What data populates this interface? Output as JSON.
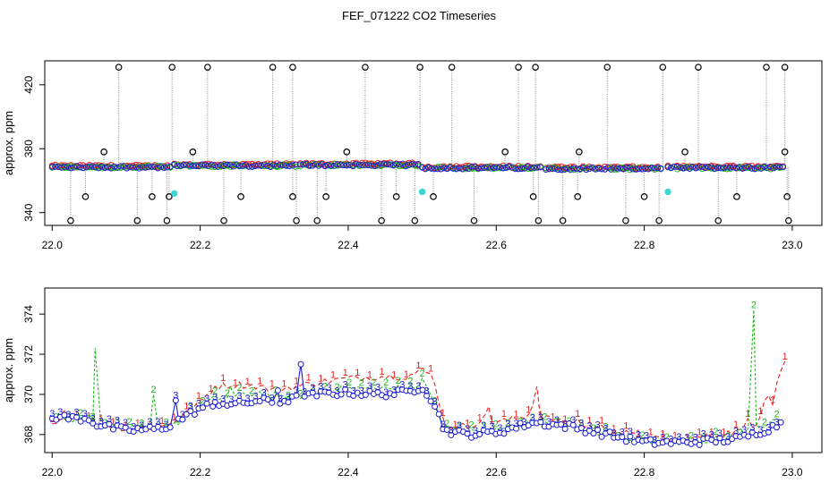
{
  "title": "FEF_071222  CO2 Timeseries",
  "colors": {
    "black": "#000000",
    "red": "#e8201c",
    "green": "#1fb81f",
    "blue": "#1a1ad6",
    "cyan": "#3ad6d6",
    "gray": "#888888"
  },
  "chart_data": [
    {
      "type": "scatter",
      "panel": "top",
      "ylabel": "approx. ppm",
      "xlim": [
        21.99,
        23.04
      ],
      "ylim": [
        332,
        435
      ],
      "xticks": [
        "22.0",
        "22.2",
        "22.4",
        "22.6",
        "22.8",
        "23.0"
      ],
      "yticks": [
        "340",
        "380",
        "420"
      ],
      "baseline_segments": [
        {
          "x0": 22.0,
          "x1": 22.16,
          "y": 368.5
        },
        {
          "x0": 22.165,
          "x1": 22.33,
          "y": 369.4
        },
        {
          "x0": 22.335,
          "x1": 22.495,
          "y": 369.8
        },
        {
          "x0": 22.5,
          "x1": 22.66,
          "y": 368.0
        },
        {
          "x0": 22.667,
          "x1": 22.826,
          "y": 367.6
        },
        {
          "x0": 22.832,
          "x1": 22.99,
          "y": 368.0
        }
      ],
      "cyan_points": [
        [
          22.165,
          352
        ],
        [
          22.5,
          353
        ],
        [
          22.832,
          353
        ]
      ],
      "outliers_high": [
        22.09,
        22.162,
        22.21,
        22.298,
        22.325,
        22.423,
        22.497,
        22.54,
        22.63,
        22.653,
        22.75,
        22.825,
        22.873,
        22.965,
        22.99
      ],
      "outliers_mid_high": [
        22.07,
        22.19,
        22.398,
        22.612,
        22.712,
        22.855,
        22.99
      ],
      "outliers_mid_low": [
        22.045,
        22.135,
        22.158,
        22.255,
        22.325,
        22.37,
        22.465,
        22.515,
        22.65,
        22.71,
        22.8,
        22.925,
        22.993
      ],
      "outliers_low": [
        22.025,
        22.115,
        22.155,
        22.232,
        22.33,
        22.358,
        22.445,
        22.49,
        22.57,
        22.657,
        22.69,
        22.775,
        22.82,
        22.9,
        22.995
      ]
    },
    {
      "type": "line",
      "panel": "bottom",
      "ylabel": "approx. ppm",
      "xlim": [
        21.99,
        23.04
      ],
      "ylim": [
        367.1,
        375.3
      ],
      "xticks": [
        "22.0",
        "22.2",
        "22.4",
        "22.6",
        "22.8",
        "23.0"
      ],
      "yticks": [
        "368",
        "370",
        "372",
        "374"
      ],
      "series": [
        {
          "name": "1",
          "color": "red",
          "knots": [
            [
              22.0,
              368.7
            ],
            [
              22.02,
              368.8
            ],
            [
              22.04,
              368.9
            ],
            [
              22.06,
              368.6
            ],
            [
              22.1,
              368.3
            ],
            [
              22.15,
              368.4
            ],
            [
              22.18,
              369.0
            ],
            [
              22.2,
              369.6
            ],
            [
              22.22,
              370.4
            ],
            [
              22.25,
              370.5
            ],
            [
              22.28,
              370.4
            ],
            [
              22.3,
              370.2
            ],
            [
              22.33,
              370.4
            ],
            [
              22.36,
              370.6
            ],
            [
              22.4,
              370.8
            ],
            [
              22.44,
              370.9
            ],
            [
              22.48,
              370.9
            ],
            [
              22.5,
              371.2
            ],
            [
              22.515,
              370.9
            ],
            [
              22.525,
              369.3
            ],
            [
              22.53,
              368.4
            ],
            [
              22.56,
              368.4
            ],
            [
              22.58,
              368.7
            ],
            [
              22.6,
              368.6
            ],
            [
              22.64,
              368.9
            ],
            [
              22.65,
              369.5
            ],
            [
              22.66,
              368.9
            ],
            [
              22.7,
              368.5
            ],
            [
              22.75,
              368.3
            ],
            [
              22.8,
              367.8
            ],
            [
              22.85,
              367.7
            ],
            [
              22.9,
              368.0
            ],
            [
              22.93,
              368.2
            ],
            [
              22.95,
              368.5
            ],
            [
              22.96,
              369.3
            ],
            [
              22.965,
              370.3
            ],
            [
              22.975,
              369.5
            ],
            [
              22.98,
              370.8
            ],
            [
              22.99,
              371.7
            ]
          ],
          "spikes": [
            [
              22.655,
              370.4
            ],
            [
              22.59,
              369.4
            ],
            [
              22.71,
              368.8
            ],
            [
              22.585,
              369.0
            ],
            [
              22.94,
              368.8
            ]
          ]
        },
        {
          "name": "2",
          "color": "green",
          "knots": [
            [
              22.0,
              368.7
            ],
            [
              22.03,
              368.8
            ],
            [
              22.05,
              368.9
            ],
            [
              22.06,
              368.6
            ],
            [
              22.1,
              368.3
            ],
            [
              22.15,
              368.3
            ],
            [
              22.18,
              368.8
            ],
            [
              22.2,
              369.3
            ],
            [
              22.22,
              369.8
            ],
            [
              22.25,
              369.9
            ],
            [
              22.28,
              370.1
            ],
            [
              22.3,
              369.8
            ],
            [
              22.33,
              369.9
            ],
            [
              22.36,
              370.1
            ],
            [
              22.4,
              370.3
            ],
            [
              22.44,
              370.3
            ],
            [
              22.48,
              370.3
            ],
            [
              22.5,
              370.6
            ],
            [
              22.515,
              369.8
            ],
            [
              22.525,
              368.8
            ],
            [
              22.53,
              368.3
            ],
            [
              22.56,
              368.1
            ],
            [
              22.6,
              368.2
            ],
            [
              22.65,
              368.6
            ],
            [
              22.7,
              368.4
            ],
            [
              22.75,
              368.0
            ],
            [
              22.8,
              367.6
            ],
            [
              22.85,
              367.6
            ],
            [
              22.9,
              367.8
            ],
            [
              22.93,
              367.9
            ],
            [
              22.945,
              368.5
            ],
            [
              22.97,
              368.5
            ],
            [
              22.985,
              368.8
            ]
          ],
          "spikes": [
            [
              22.058,
              372.3
            ],
            [
              22.137,
              370.0
            ],
            [
              22.948,
              374.2
            ],
            [
              22.24,
              370.4
            ],
            [
              22.5,
              370.8
            ]
          ]
        },
        {
          "name": "3",
          "color": "blue",
          "knots": [
            [
              22.0,
              368.9
            ],
            [
              22.03,
              368.8
            ],
            [
              22.05,
              368.8
            ],
            [
              22.06,
              368.5
            ],
            [
              22.1,
              368.2
            ],
            [
              22.15,
              368.3
            ],
            [
              22.18,
              368.9
            ],
            [
              22.2,
              369.3
            ],
            [
              22.22,
              369.6
            ],
            [
              22.25,
              369.5
            ],
            [
              22.28,
              369.7
            ],
            [
              22.3,
              369.6
            ],
            [
              22.33,
              369.8
            ],
            [
              22.36,
              370.0
            ],
            [
              22.4,
              370.1
            ],
            [
              22.44,
              370.0
            ],
            [
              22.48,
              370.1
            ],
            [
              22.5,
              370.4
            ],
            [
              22.515,
              369.6
            ],
            [
              22.525,
              368.7
            ],
            [
              22.53,
              368.2
            ],
            [
              22.56,
              368.0
            ],
            [
              22.6,
              368.1
            ],
            [
              22.65,
              368.6
            ],
            [
              22.7,
              368.4
            ],
            [
              22.75,
              368.0
            ],
            [
              22.8,
              367.6
            ],
            [
              22.85,
              367.6
            ],
            [
              22.9,
              367.7
            ],
            [
              22.93,
              367.8
            ],
            [
              22.945,
              368.0
            ],
            [
              22.97,
              368.3
            ],
            [
              22.985,
              368.6
            ]
          ],
          "spikes": [
            [
              22.336,
              371.5
            ],
            [
              22.167,
              369.7
            ],
            [
              22.217,
              369.4
            ],
            [
              22.305,
              370.2
            ],
            [
              22.0,
              368.8
            ]
          ]
        }
      ]
    }
  ]
}
